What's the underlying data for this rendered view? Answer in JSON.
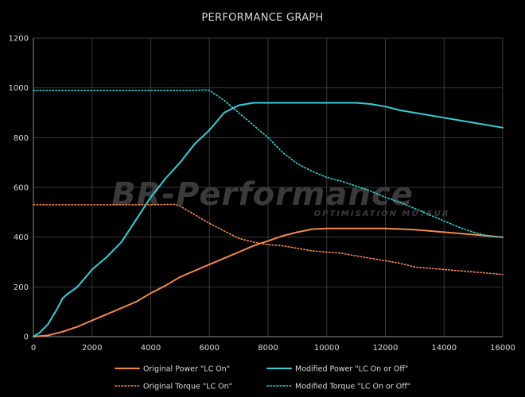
{
  "watermark": {
    "brand": "BR-Performance",
    "tagline": "OPTIMISATION MOTEUR"
  },
  "chart_data": {
    "type": "line",
    "title": "PERFORMANCE GRAPH",
    "xlabel": "",
    "ylabel": "",
    "xlim": [
      0,
      16000
    ],
    "ylim": [
      0,
      1200
    ],
    "xticks": [
      0,
      2000,
      4000,
      6000,
      8000,
      10000,
      12000,
      14000,
      16000
    ],
    "yticks": [
      0,
      200,
      400,
      600,
      800,
      1000,
      1200
    ],
    "grid": true,
    "legend_position": "bottom",
    "series": [
      {
        "name": "Original Power \"LC On\"",
        "color": "#f4884a",
        "style": "solid",
        "points": [
          [
            0,
            0
          ],
          [
            500,
            5
          ],
          [
            1000,
            20
          ],
          [
            1500,
            40
          ],
          [
            2000,
            65
          ],
          [
            2500,
            90
          ],
          [
            3000,
            115
          ],
          [
            3500,
            140
          ],
          [
            4000,
            175
          ],
          [
            4500,
            205
          ],
          [
            5000,
            240
          ],
          [
            5500,
            265
          ],
          [
            6000,
            290
          ],
          [
            6500,
            315
          ],
          [
            7000,
            340
          ],
          [
            7500,
            365
          ],
          [
            8000,
            385
          ],
          [
            8500,
            405
          ],
          [
            9000,
            420
          ],
          [
            9500,
            432
          ],
          [
            10000,
            435
          ],
          [
            11000,
            435
          ],
          [
            12000,
            435
          ],
          [
            13000,
            430
          ],
          [
            14000,
            420
          ],
          [
            15000,
            410
          ],
          [
            16000,
            400
          ]
        ]
      },
      {
        "name": "Modified Power \"LC On or Off\"",
        "color": "#31d1d9",
        "style": "solid",
        "points": [
          [
            0,
            0
          ],
          [
            200,
            15
          ],
          [
            500,
            50
          ],
          [
            800,
            110
          ],
          [
            1000,
            155
          ],
          [
            1200,
            175
          ],
          [
            1500,
            200
          ],
          [
            2000,
            270
          ],
          [
            2500,
            320
          ],
          [
            3000,
            380
          ],
          [
            3500,
            470
          ],
          [
            4000,
            560
          ],
          [
            4500,
            635
          ],
          [
            5000,
            700
          ],
          [
            5500,
            775
          ],
          [
            6000,
            830
          ],
          [
            6500,
            900
          ],
          [
            7000,
            930
          ],
          [
            7500,
            940
          ],
          [
            8000,
            940
          ],
          [
            9000,
            940
          ],
          [
            10000,
            940
          ],
          [
            11000,
            940
          ],
          [
            11500,
            935
          ],
          [
            12000,
            925
          ],
          [
            12500,
            910
          ],
          [
            13000,
            900
          ],
          [
            14000,
            880
          ],
          [
            15000,
            860
          ],
          [
            16000,
            840
          ]
        ]
      },
      {
        "name": "Original Torque \"LC On\"",
        "color": "#f4884a",
        "style": "dotted",
        "points": [
          [
            0,
            530
          ],
          [
            1000,
            530
          ],
          [
            2000,
            530
          ],
          [
            3000,
            530
          ],
          [
            4000,
            530
          ],
          [
            4800,
            532
          ],
          [
            5000,
            525
          ],
          [
            5500,
            490
          ],
          [
            6000,
            455
          ],
          [
            6500,
            425
          ],
          [
            7000,
            395
          ],
          [
            7500,
            380
          ],
          [
            8000,
            370
          ],
          [
            8500,
            365
          ],
          [
            9000,
            355
          ],
          [
            9500,
            345
          ],
          [
            10000,
            340
          ],
          [
            10500,
            335
          ],
          [
            11000,
            325
          ],
          [
            12000,
            305
          ],
          [
            12500,
            295
          ],
          [
            13000,
            280
          ],
          [
            14000,
            270
          ],
          [
            15000,
            260
          ],
          [
            16000,
            250
          ]
        ]
      },
      {
        "name": "Modified Torque \"LC On or Off\"",
        "color": "#31d1d9",
        "style": "dotted",
        "points": [
          [
            0,
            990
          ],
          [
            1000,
            990
          ],
          [
            2000,
            990
          ],
          [
            3000,
            990
          ],
          [
            4000,
            990
          ],
          [
            5000,
            990
          ],
          [
            5500,
            990
          ],
          [
            5800,
            992
          ],
          [
            6000,
            990
          ],
          [
            6500,
            950
          ],
          [
            7000,
            900
          ],
          [
            7500,
            850
          ],
          [
            8000,
            800
          ],
          [
            8500,
            740
          ],
          [
            9000,
            695
          ],
          [
            9500,
            665
          ],
          [
            10000,
            640
          ],
          [
            10500,
            625
          ],
          [
            11000,
            605
          ],
          [
            11500,
            585
          ],
          [
            12000,
            560
          ],
          [
            12500,
            540
          ],
          [
            13000,
            515
          ],
          [
            13500,
            490
          ],
          [
            14000,
            465
          ],
          [
            14500,
            440
          ],
          [
            15000,
            420
          ],
          [
            15500,
            405
          ],
          [
            16000,
            400
          ]
        ]
      }
    ]
  }
}
